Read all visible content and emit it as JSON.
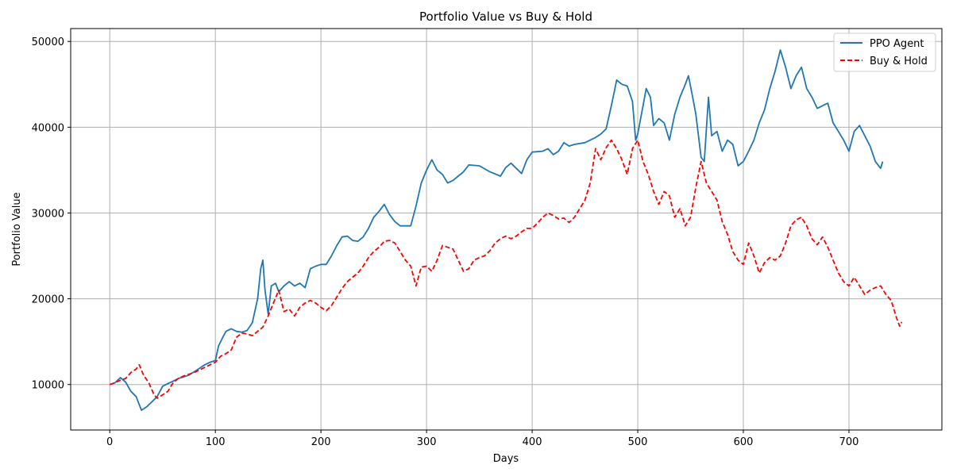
{
  "chart_data": {
    "type": "line",
    "title": "Portfolio Value vs Buy & Hold",
    "xlabel": "Days",
    "ylabel": "Portfolio Value",
    "xlim": [
      -37,
      788
    ],
    "ylim": [
      4700,
      51500
    ],
    "xticks": [
      0,
      100,
      200,
      300,
      400,
      500,
      600,
      700
    ],
    "yticks": [
      10000,
      20000,
      30000,
      40000,
      50000
    ],
    "grid": true,
    "legend_position": "top-right",
    "series": [
      {
        "name": "PPO Agent",
        "color": "#1f77b4",
        "style": "solid",
        "points": [
          [
            0,
            10000
          ],
          [
            5,
            10200
          ],
          [
            10,
            10800
          ],
          [
            15,
            10300
          ],
          [
            20,
            9200
          ],
          [
            25,
            8600
          ],
          [
            30,
            7000
          ],
          [
            35,
            7400
          ],
          [
            40,
            8000
          ],
          [
            45,
            8600
          ],
          [
            50,
            9800
          ],
          [
            55,
            10100
          ],
          [
            60,
            10400
          ],
          [
            65,
            10700
          ],
          [
            70,
            10900
          ],
          [
            75,
            11100
          ],
          [
            80,
            11500
          ],
          [
            85,
            11900
          ],
          [
            90,
            12300
          ],
          [
            95,
            12600
          ],
          [
            100,
            12800
          ],
          [
            103,
            14500
          ],
          [
            107,
            15500
          ],
          [
            110,
            16200
          ],
          [
            115,
            16500
          ],
          [
            120,
            16200
          ],
          [
            125,
            16100
          ],
          [
            130,
            16300
          ],
          [
            135,
            17200
          ],
          [
            140,
            20000
          ],
          [
            143,
            23500
          ],
          [
            145,
            24500
          ],
          [
            147,
            21000
          ],
          [
            150,
            18200
          ],
          [
            153,
            21500
          ],
          [
            157,
            21800
          ],
          [
            160,
            20800
          ],
          [
            165,
            21500
          ],
          [
            170,
            22000
          ],
          [
            175,
            21500
          ],
          [
            180,
            21800
          ],
          [
            185,
            21300
          ],
          [
            190,
            23500
          ],
          [
            195,
            23800
          ],
          [
            200,
            24000
          ],
          [
            205,
            24000
          ],
          [
            210,
            25000
          ],
          [
            215,
            26200
          ],
          [
            220,
            27200
          ],
          [
            225,
            27300
          ],
          [
            230,
            26800
          ],
          [
            235,
            26700
          ],
          [
            240,
            27200
          ],
          [
            245,
            28200
          ],
          [
            250,
            29500
          ],
          [
            255,
            30200
          ],
          [
            260,
            31000
          ],
          [
            265,
            29800
          ],
          [
            270,
            29000
          ],
          [
            275,
            28500
          ],
          [
            280,
            28500
          ],
          [
            285,
            28500
          ],
          [
            290,
            30800
          ],
          [
            295,
            33500
          ],
          [
            300,
            35000
          ],
          [
            305,
            36200
          ],
          [
            310,
            35000
          ],
          [
            315,
            34500
          ],
          [
            320,
            33500
          ],
          [
            325,
            33800
          ],
          [
            330,
            34300
          ],
          [
            335,
            34800
          ],
          [
            340,
            35600
          ],
          [
            350,
            35500
          ],
          [
            360,
            34800
          ],
          [
            370,
            34300
          ],
          [
            375,
            35300
          ],
          [
            380,
            35800
          ],
          [
            385,
            35200
          ],
          [
            390,
            34600
          ],
          [
            395,
            36200
          ],
          [
            400,
            37100
          ],
          [
            410,
            37200
          ],
          [
            415,
            37500
          ],
          [
            420,
            36800
          ],
          [
            425,
            37200
          ],
          [
            430,
            38200
          ],
          [
            435,
            37800
          ],
          [
            440,
            38000
          ],
          [
            450,
            38200
          ],
          [
            455,
            38500
          ],
          [
            460,
            38800
          ],
          [
            465,
            39200
          ],
          [
            470,
            39800
          ],
          [
            475,
            42500
          ],
          [
            480,
            45500
          ],
          [
            485,
            45000
          ],
          [
            490,
            44800
          ],
          [
            495,
            43000
          ],
          [
            498,
            38500
          ],
          [
            500,
            39200
          ],
          [
            505,
            42500
          ],
          [
            508,
            44500
          ],
          [
            512,
            43500
          ],
          [
            515,
            40200
          ],
          [
            520,
            41000
          ],
          [
            525,
            40500
          ],
          [
            530,
            38500
          ],
          [
            535,
            41500
          ],
          [
            540,
            43500
          ],
          [
            545,
            45000
          ],
          [
            548,
            46000
          ],
          [
            552,
            43500
          ],
          [
            555,
            41500
          ],
          [
            560,
            36500
          ],
          [
            563,
            36000
          ],
          [
            567,
            43500
          ],
          [
            570,
            39000
          ],
          [
            575,
            39500
          ],
          [
            580,
            37200
          ],
          [
            585,
            38500
          ],
          [
            590,
            38000
          ],
          [
            595,
            35500
          ],
          [
            600,
            36000
          ],
          [
            605,
            37200
          ],
          [
            610,
            38500
          ],
          [
            615,
            40500
          ],
          [
            620,
            42000
          ],
          [
            625,
            44500
          ],
          [
            630,
            46500
          ],
          [
            635,
            49000
          ],
          [
            640,
            47000
          ],
          [
            645,
            44500
          ],
          [
            650,
            46000
          ],
          [
            655,
            47000
          ],
          [
            660,
            44500
          ],
          [
            665,
            43500
          ],
          [
            670,
            42200
          ],
          [
            675,
            42500
          ],
          [
            680,
            42800
          ],
          [
            685,
            40500
          ],
          [
            690,
            39500
          ],
          [
            695,
            38500
          ],
          [
            700,
            37200
          ],
          [
            705,
            39500
          ],
          [
            710,
            40200
          ],
          [
            715,
            39000
          ],
          [
            720,
            37800
          ],
          [
            725,
            36000
          ],
          [
            730,
            35200
          ],
          [
            732,
            36000
          ]
        ]
      },
      {
        "name": "Buy & Hold",
        "color": "#ff0000",
        "style": "dashed",
        "points": [
          [
            0,
            10000
          ],
          [
            5,
            10200
          ],
          [
            10,
            10500
          ],
          [
            15,
            10700
          ],
          [
            20,
            11400
          ],
          [
            25,
            11800
          ],
          [
            28,
            12300
          ],
          [
            32,
            11100
          ],
          [
            37,
            10200
          ],
          [
            42,
            8800
          ],
          [
            45,
            8400
          ],
          [
            50,
            8800
          ],
          [
            55,
            9200
          ],
          [
            60,
            10200
          ],
          [
            65,
            10700
          ],
          [
            70,
            11000
          ],
          [
            75,
            11200
          ],
          [
            80,
            11400
          ],
          [
            85,
            11700
          ],
          [
            90,
            12000
          ],
          [
            95,
            12300
          ],
          [
            100,
            12600
          ],
          [
            105,
            13300
          ],
          [
            110,
            13600
          ],
          [
            115,
            14000
          ],
          [
            120,
            15500
          ],
          [
            125,
            16000
          ],
          [
            130,
            15900
          ],
          [
            135,
            15700
          ],
          [
            140,
            16200
          ],
          [
            145,
            16700
          ],
          [
            150,
            18000
          ],
          [
            155,
            19500
          ],
          [
            160,
            21000
          ],
          [
            165,
            18500
          ],
          [
            170,
            18800
          ],
          [
            175,
            18000
          ],
          [
            180,
            19000
          ],
          [
            185,
            19500
          ],
          [
            190,
            19800
          ],
          [
            195,
            19500
          ],
          [
            200,
            19000
          ],
          [
            205,
            18600
          ],
          [
            210,
            19200
          ],
          [
            215,
            20200
          ],
          [
            220,
            21200
          ],
          [
            225,
            22000
          ],
          [
            230,
            22500
          ],
          [
            235,
            23000
          ],
          [
            240,
            23800
          ],
          [
            245,
            24800
          ],
          [
            250,
            25500
          ],
          [
            255,
            26000
          ],
          [
            260,
            26700
          ],
          [
            265,
            26800
          ],
          [
            270,
            26500
          ],
          [
            275,
            25500
          ],
          [
            280,
            24500
          ],
          [
            285,
            23800
          ],
          [
            290,
            21500
          ],
          [
            295,
            23700
          ],
          [
            300,
            23800
          ],
          [
            305,
            23200
          ],
          [
            310,
            24500
          ],
          [
            315,
            26200
          ],
          [
            320,
            26000
          ],
          [
            325,
            25800
          ],
          [
            330,
            24500
          ],
          [
            335,
            23200
          ],
          [
            340,
            23500
          ],
          [
            345,
            24500
          ],
          [
            350,
            24800
          ],
          [
            355,
            25000
          ],
          [
            360,
            25600
          ],
          [
            365,
            26500
          ],
          [
            370,
            27000
          ],
          [
            375,
            27300
          ],
          [
            380,
            27000
          ],
          [
            385,
            27300
          ],
          [
            390,
            27800
          ],
          [
            395,
            28200
          ],
          [
            400,
            28200
          ],
          [
            405,
            28800
          ],
          [
            410,
            29500
          ],
          [
            415,
            30000
          ],
          [
            420,
            29700
          ],
          [
            425,
            29300
          ],
          [
            430,
            29400
          ],
          [
            435,
            28900
          ],
          [
            440,
            29500
          ],
          [
            445,
            30500
          ],
          [
            450,
            31500
          ],
          [
            455,
            33500
          ],
          [
            460,
            37500
          ],
          [
            465,
            36200
          ],
          [
            470,
            37600
          ],
          [
            475,
            38500
          ],
          [
            480,
            37500
          ],
          [
            485,
            36200
          ],
          [
            490,
            34500
          ],
          [
            495,
            37500
          ],
          [
            500,
            38500
          ],
          [
            505,
            36000
          ],
          [
            510,
            34500
          ],
          [
            515,
            32500
          ],
          [
            520,
            31000
          ],
          [
            525,
            32500
          ],
          [
            530,
            32000
          ],
          [
            535,
            29500
          ],
          [
            540,
            30500
          ],
          [
            545,
            28500
          ],
          [
            550,
            29500
          ],
          [
            555,
            33000
          ],
          [
            560,
            36000
          ],
          [
            565,
            33500
          ],
          [
            570,
            32500
          ],
          [
            575,
            31500
          ],
          [
            580,
            29000
          ],
          [
            585,
            27500
          ],
          [
            590,
            25500
          ],
          [
            595,
            24500
          ],
          [
            600,
            24000
          ],
          [
            605,
            26500
          ],
          [
            610,
            25000
          ],
          [
            615,
            23000
          ],
          [
            620,
            24200
          ],
          [
            625,
            24800
          ],
          [
            630,
            24500
          ],
          [
            635,
            25000
          ],
          [
            640,
            26500
          ],
          [
            645,
            28500
          ],
          [
            650,
            29200
          ],
          [
            655,
            29500
          ],
          [
            660,
            28500
          ],
          [
            665,
            27000
          ],
          [
            670,
            26300
          ],
          [
            675,
            27200
          ],
          [
            680,
            26000
          ],
          [
            685,
            24500
          ],
          [
            690,
            23000
          ],
          [
            695,
            22000
          ],
          [
            700,
            21500
          ],
          [
            705,
            22500
          ],
          [
            710,
            21500
          ],
          [
            715,
            20500
          ],
          [
            720,
            21000
          ],
          [
            725,
            21300
          ],
          [
            730,
            21500
          ],
          [
            735,
            20500
          ],
          [
            740,
            19800
          ],
          [
            745,
            17800
          ],
          [
            748,
            16800
          ],
          [
            750,
            17300
          ]
        ]
      }
    ]
  }
}
